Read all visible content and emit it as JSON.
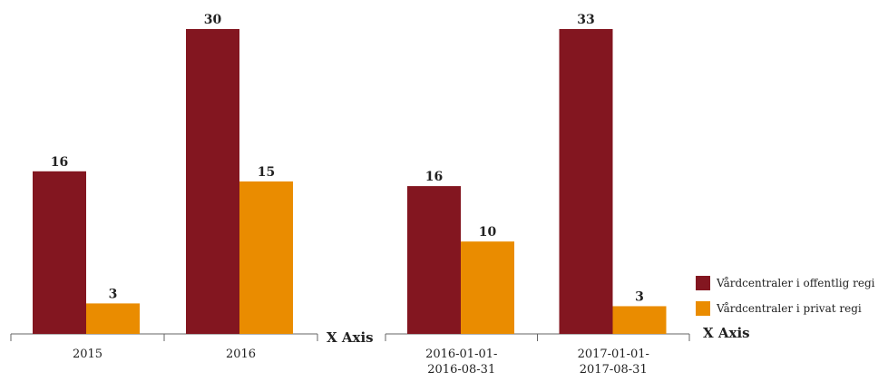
{
  "chart_data": [
    {
      "type": "bar",
      "x_label": "X Axis",
      "categories": [
        "2015",
        "2016"
      ],
      "series": [
        {
          "name": "Vårdcentraler i offentlig regi",
          "color": "#831620",
          "values": [
            16,
            30
          ]
        },
        {
          "name": "Vårdcentraler i privat regi",
          "color": "#ea8c00",
          "values": [
            3,
            15
          ]
        }
      ]
    },
    {
      "type": "bar",
      "x_label": "X Axis",
      "categories": [
        "2016-01-01-2016-08-31",
        "2017-01-01-2017-08-31"
      ],
      "series": [
        {
          "name": "Vårdcentraler i offentlig regi",
          "color": "#831620",
          "values": [
            16,
            33
          ]
        },
        {
          "name": "Vårdcentraler i privat regi",
          "color": "#ea8c00",
          "values": [
            10,
            3
          ]
        }
      ],
      "legend": "right"
    }
  ]
}
